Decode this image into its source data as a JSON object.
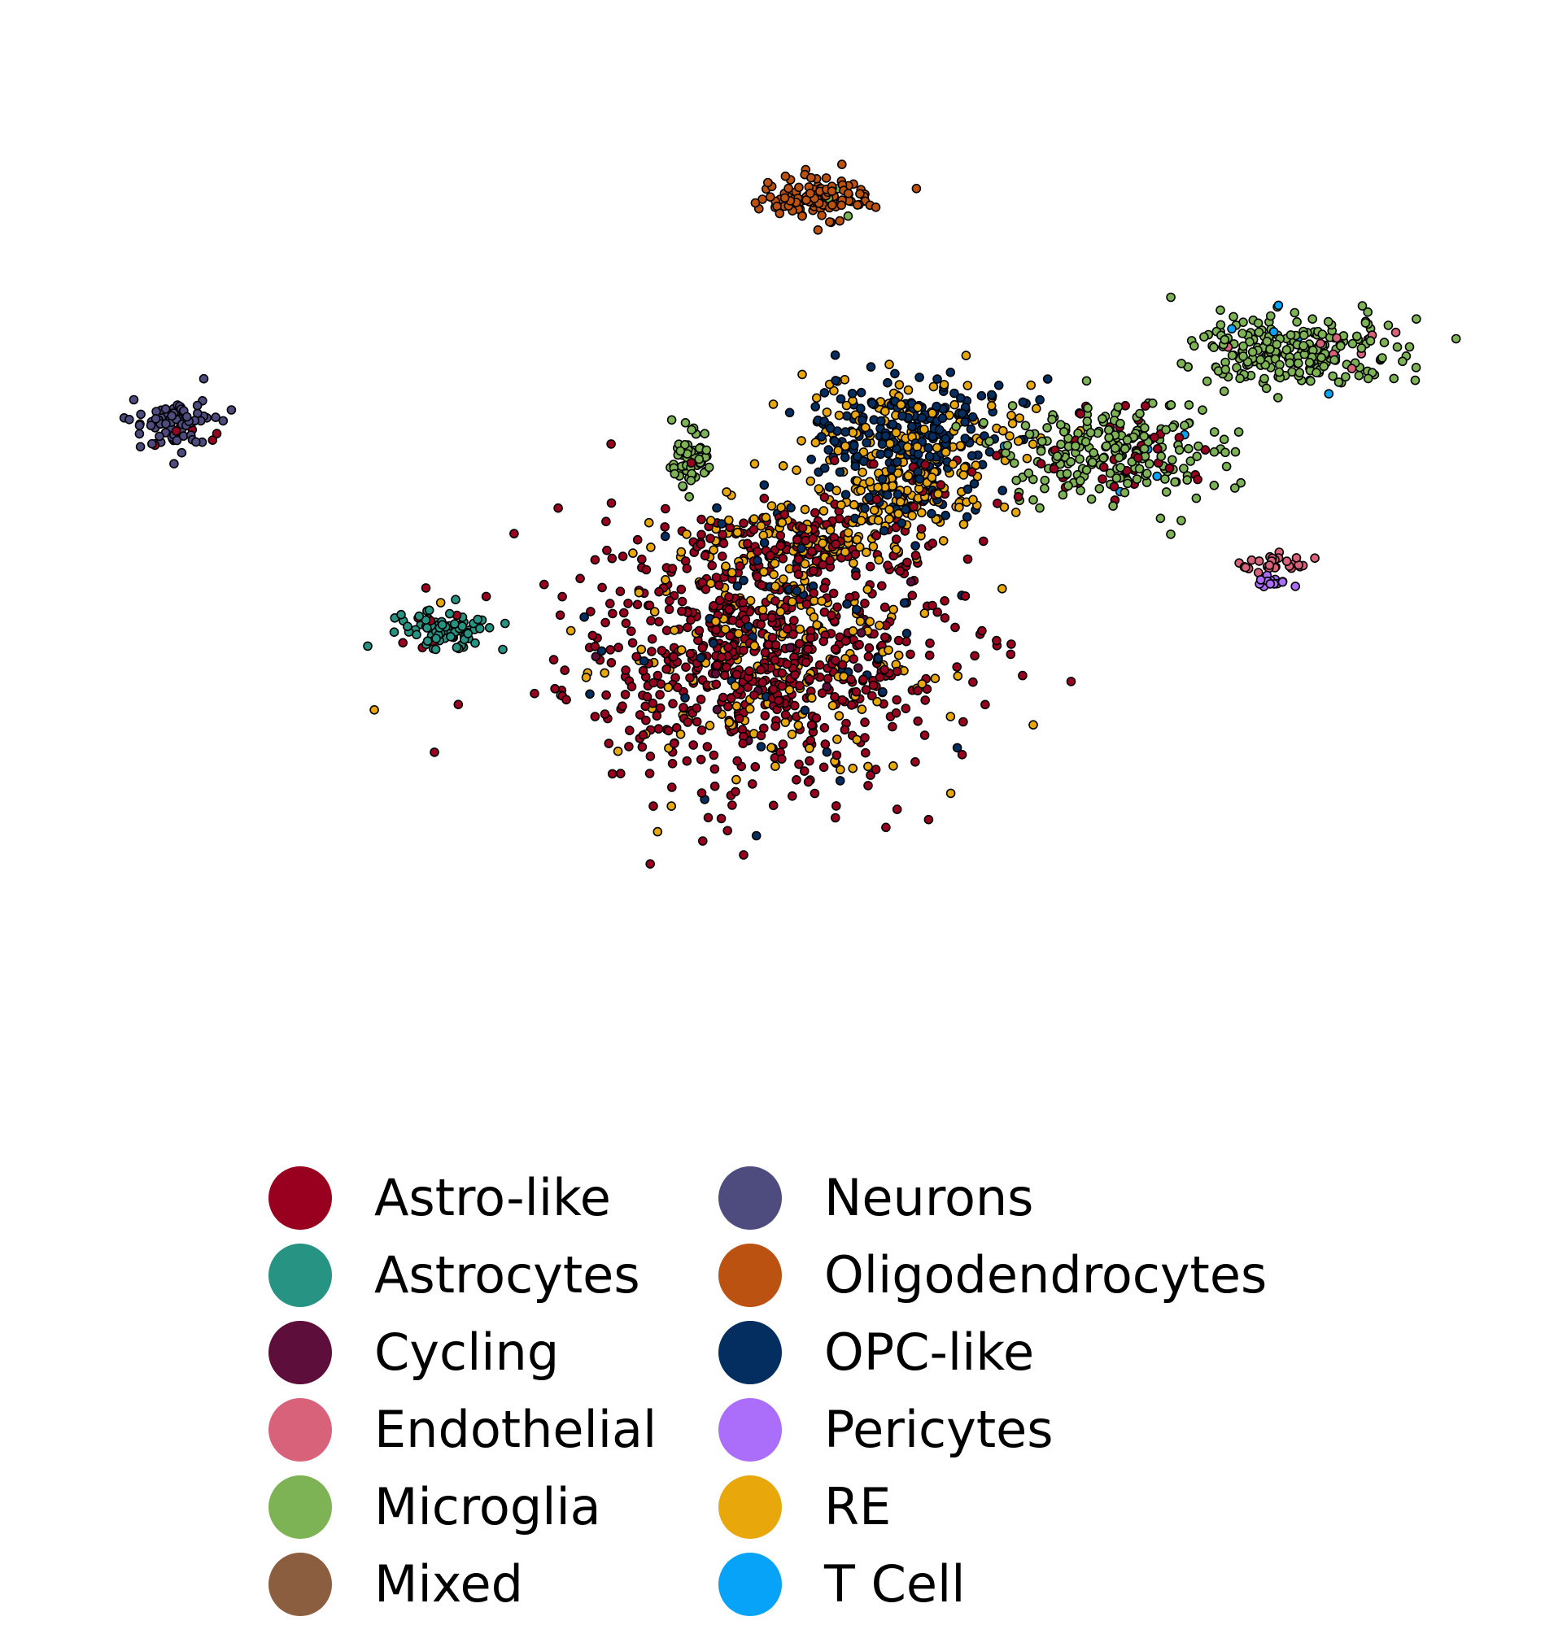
{
  "chart_data": {
    "type": "scatter",
    "title": "",
    "xlabel": "",
    "ylabel": "",
    "axes_visible": false,
    "grid": false,
    "legend_placement": "bottom-center",
    "legend_columns": 2,
    "xlim": [
      0,
      100
    ],
    "ylim": [
      0,
      100
    ],
    "categories": [
      {
        "name": "Astro-like",
        "color": "#99001f"
      },
      {
        "name": "Astrocytes",
        "color": "#279383"
      },
      {
        "name": "Cycling",
        "color": "#5e0e3a"
      },
      {
        "name": "Endothelial",
        "color": "#d9627b"
      },
      {
        "name": "Microglia",
        "color": "#7db354"
      },
      {
        "name": "Mixed",
        "color": "#8b5e3f"
      },
      {
        "name": "Neurons",
        "color": "#4e4b7f"
      },
      {
        "name": "Oligodendrocytes",
        "color": "#bb5211"
      },
      {
        "name": "OPC-like",
        "color": "#032e5f"
      },
      {
        "name": "Pericytes",
        "color": "#aa6efa"
      },
      {
        "name": "RE",
        "color": "#e8a80c"
      },
      {
        "name": "T Cell",
        "color": "#06a3f8"
      }
    ],
    "clusters": [
      {
        "name": "main",
        "category": "Astro-like",
        "center": [
          49,
          37
        ],
        "spread": [
          9,
          9
        ],
        "mix": {
          "Astro-like": 0.72,
          "RE": 0.22,
          "OPC-like": 0.04,
          "Cycling": 0.02
        }
      },
      {
        "name": "main-upper",
        "category": "Astro-like",
        "center": [
          52,
          50
        ],
        "spread": [
          6,
          3
        ],
        "mix": {
          "Astro-like": 0.55,
          "RE": 0.38,
          "OPC-like": 0.07
        }
      },
      {
        "name": "opc",
        "category": "OPC-like",
        "center": [
          60,
          62
        ],
        "spread": [
          5,
          4
        ],
        "mix": {
          "OPC-like": 0.62,
          "RE": 0.38
        }
      },
      {
        "name": "opc-lower",
        "category": "RE",
        "center": [
          59,
          55
        ],
        "spread": [
          4,
          3
        ],
        "mix": {
          "RE": 0.6,
          "OPC-like": 0.25,
          "Astro-like": 0.15
        }
      },
      {
        "name": "oligodendrocytes",
        "category": "Oligodendrocytes",
        "center": [
          53,
          88
        ],
        "spread": [
          2.5,
          1.7
        ],
        "mix": {
          "Oligodendrocytes": 0.96,
          "Microglia": 0.04
        }
      },
      {
        "name": "neurons",
        "category": "Neurons",
        "center": [
          8,
          63
        ],
        "spread": [
          2,
          2
        ],
        "mix": {
          "Neurons": 0.94,
          "Astro-like": 0.06
        }
      },
      {
        "name": "astrocytes",
        "category": "Astrocytes",
        "center": [
          27,
          40
        ],
        "spread": [
          2.2,
          1.3
        ],
        "mix": {
          "Astrocytes": 0.9,
          "Astro-like": 0.1
        }
      },
      {
        "name": "microglia-small",
        "category": "Microglia",
        "center": [
          44,
          59
        ],
        "spread": [
          1.1,
          2.5
        ],
        "mix": {
          "Microglia": 0.95,
          "Astro-like": 0.05
        }
      },
      {
        "name": "microglia-right",
        "category": "Microglia",
        "center": [
          74,
          60
        ],
        "spread": [
          5,
          4
        ],
        "mix": {
          "Microglia": 0.82,
          "Astro-like": 0.15,
          "T Cell": 0.03
        }
      },
      {
        "name": "microglia-far",
        "category": "Microglia",
        "center": [
          87,
          71
        ],
        "spread": [
          5,
          2.5
        ],
        "mix": {
          "Microglia": 0.92,
          "T Cell": 0.05,
          "Endothelial": 0.03
        }
      },
      {
        "name": "endothelial",
        "category": "Endothelial",
        "center": [
          85.5,
          47.5
        ],
        "spread": [
          1.6,
          0.7
        ],
        "mix": {
          "Endothelial": 1.0
        }
      },
      {
        "name": "pericytes",
        "category": "Pericytes",
        "center": [
          85.5,
          45.5
        ],
        "spread": [
          1,
          0.4
        ],
        "mix": {
          "Pericytes": 1.0
        }
      }
    ]
  }
}
